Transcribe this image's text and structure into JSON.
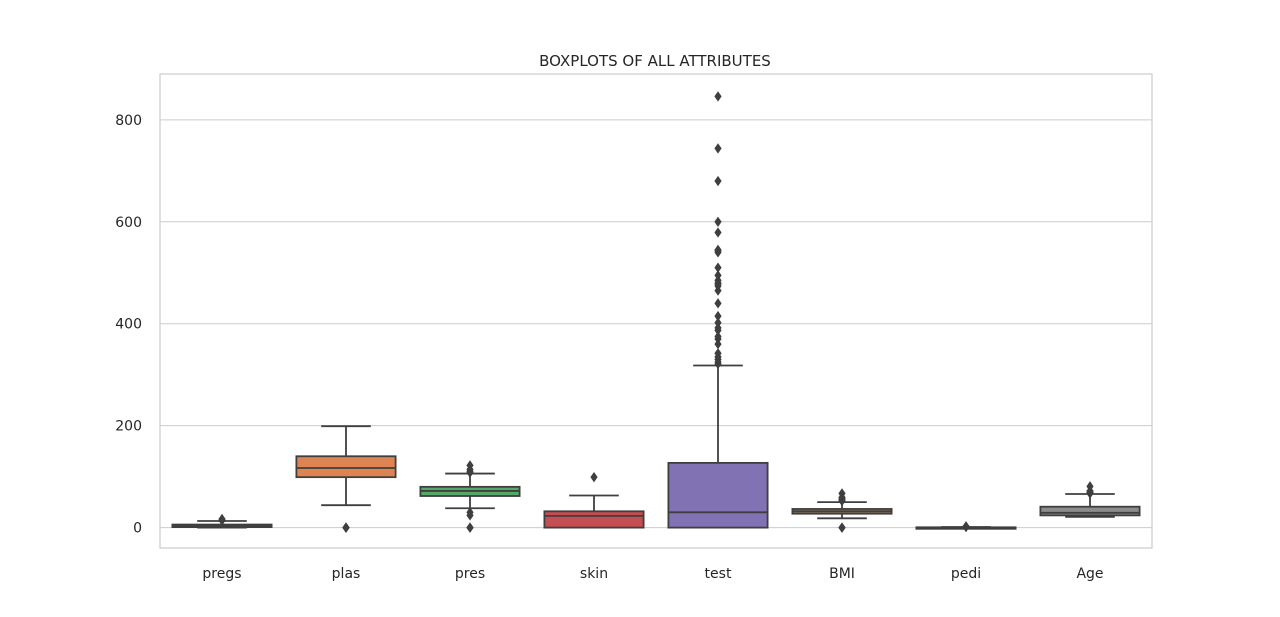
{
  "chart_data": {
    "type": "box",
    "title": "BOXPLOTS OF ALL ATTRIBUTES",
    "xlabel": "",
    "ylabel": "",
    "ylim": [
      -40,
      890
    ],
    "yticks": [
      0,
      200,
      400,
      600,
      800
    ],
    "grid": "horizontal",
    "categories": [
      "pregs",
      "plas",
      "pres",
      "skin",
      "test",
      "BMI",
      "pedi",
      "Age"
    ],
    "colors": [
      "#4c72b0",
      "#dd8452",
      "#55a868",
      "#c44e52",
      "#8172b3",
      "#937860",
      "#da8bc3",
      "#8c8c8c"
    ],
    "boxes": [
      {
        "name": "pregs",
        "whislo": 0,
        "q1": 1,
        "med": 3,
        "q3": 6,
        "whishi": 13,
        "fliers": [
          14,
          15,
          17
        ]
      },
      {
        "name": "plas",
        "whislo": 44,
        "q1": 99,
        "med": 117,
        "q3": 140,
        "whishi": 199,
        "fliers": [
          0,
          0,
          0,
          0,
          0
        ]
      },
      {
        "name": "pres",
        "whislo": 38,
        "q1": 62,
        "med": 72,
        "q3": 80,
        "whishi": 106,
        "fliers": [
          0,
          0,
          0,
          24,
          30,
          108,
          110,
          114,
          122
        ]
      },
      {
        "name": "skin",
        "whislo": 0,
        "q1": 0,
        "med": 23,
        "q3": 32,
        "whishi": 63,
        "fliers": [
          99
        ]
      },
      {
        "name": "test",
        "whislo": 0,
        "q1": 0,
        "med": 30,
        "q3": 127,
        "whishi": 318,
        "fliers": [
          321,
          325,
          330,
          335,
          342,
          360,
          370,
          375,
          387,
          392,
          402,
          415,
          440,
          465,
          474,
          478,
          480,
          485,
          495,
          510,
          540,
          543,
          545,
          579,
          600,
          680,
          744,
          846
        ]
      },
      {
        "name": "BMI",
        "whislo": 18.2,
        "q1": 27.3,
        "med": 32,
        "q3": 36.6,
        "whishi": 50,
        "fliers": [
          0,
          0,
          0,
          52.3,
          53.2,
          55,
          57.3,
          59.4,
          67.1
        ]
      },
      {
        "name": "pedi",
        "whislo": 0.08,
        "q1": 0.24,
        "med": 0.37,
        "q3": 0.63,
        "whishi": 1.19,
        "fliers": [
          1.3,
          1.5,
          1.7,
          2.0,
          2.3,
          2.42
        ]
      },
      {
        "name": "Age",
        "whislo": 21,
        "q1": 24,
        "med": 29,
        "q3": 41,
        "whishi": 66,
        "fliers": [
          67,
          68,
          69,
          70,
          72,
          81
        ]
      }
    ]
  }
}
